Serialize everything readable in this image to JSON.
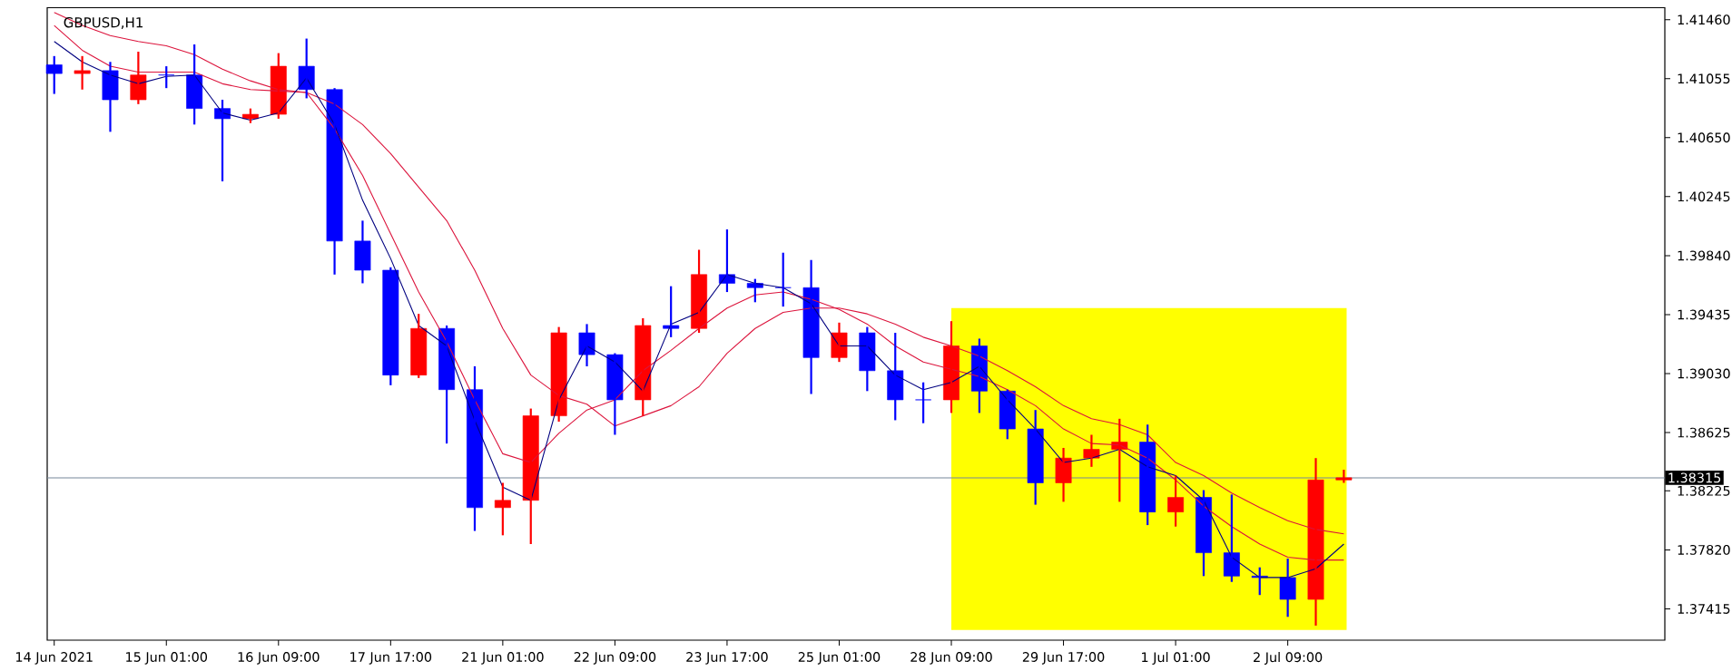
{
  "chart_data": {
    "type": "candlestick",
    "title": "GBPUSD,H1",
    "categories": [
      "14 Jun 2021",
      null,
      null,
      null,
      "15 Jun 01:00",
      null,
      null,
      null,
      "16 Jun 09:00",
      null,
      null,
      null,
      "17 Jun 17:00",
      null,
      null,
      null,
      "21 Jun 01:00",
      null,
      null,
      null,
      "22 Jun 09:00",
      null,
      null,
      null,
      "23 Jun 17:00",
      null,
      null,
      null,
      "25 Jun 01:00",
      null,
      null,
      null,
      "28 Jun 09:00",
      null,
      null,
      null,
      "29 Jun 17:00",
      null,
      null,
      null,
      "1 Jul 01:00",
      null,
      null,
      null,
      "2 Jul 09:00",
      null,
      null,
      null,
      null,
      null,
      null,
      null,
      null,
      null,
      null,
      null,
      null,
      null
    ],
    "ohlc": [
      [
        1.4115,
        1.4121,
        1.4095,
        1.4109
      ],
      [
        1.4109,
        1.4121,
        1.4098,
        1.4111
      ],
      [
        1.4111,
        1.4117,
        1.4069,
        1.4091
      ],
      [
        1.4091,
        1.4124,
        1.4088,
        1.4108
      ],
      [
        1.4108,
        1.4114,
        1.4099,
        1.4108
      ],
      [
        1.4108,
        1.4129,
        1.4074,
        1.4085
      ],
      [
        1.4085,
        1.4091,
        1.4035,
        1.4078
      ],
      [
        1.4078,
        1.4085,
        1.4075,
        1.4081
      ],
      [
        1.4081,
        1.4123,
        1.4078,
        1.4114
      ],
      [
        1.4114,
        1.4133,
        1.4092,
        1.4098
      ],
      [
        1.4098,
        1.4099,
        1.3971,
        1.3994
      ],
      [
        1.3994,
        1.4008,
        1.3965,
        1.3974
      ],
      [
        1.3974,
        1.3976,
        1.3895,
        1.3902
      ],
      [
        1.3902,
        1.3944,
        1.39,
        1.3934
      ],
      [
        1.3934,
        1.3936,
        1.3855,
        1.3892
      ],
      [
        1.3892,
        1.3908,
        1.3795,
        1.3811
      ],
      [
        1.3811,
        1.3828,
        1.3792,
        1.3816
      ],
      [
        1.3816,
        1.3879,
        1.3786,
        1.3874
      ],
      [
        1.3874,
        1.3935,
        1.387,
        1.3931
      ],
      [
        1.3931,
        1.3937,
        1.3908,
        1.3916
      ],
      [
        1.3916,
        1.3917,
        1.3861,
        1.3885
      ],
      [
        1.3885,
        1.3941,
        1.3874,
        1.3936
      ],
      [
        1.3936,
        1.3963,
        1.3928,
        1.3934
      ],
      [
        1.3934,
        1.3988,
        1.3931,
        1.3971
      ],
      [
        1.3971,
        1.4002,
        1.3959,
        1.3965
      ],
      [
        1.3965,
        1.3968,
        1.3952,
        1.3962
      ],
      [
        1.3962,
        1.3986,
        1.3949,
        1.3962
      ],
      [
        1.3962,
        1.3981,
        1.3889,
        1.3914
      ],
      [
        1.3914,
        1.3938,
        1.3911,
        1.3931
      ],
      [
        1.3931,
        1.3935,
        1.3891,
        1.3905
      ],
      [
        1.3905,
        1.3931,
        1.3871,
        1.3885
      ],
      [
        1.3885,
        1.3897,
        1.3869,
        1.3885
      ],
      [
        1.3885,
        1.3939,
        1.3876,
        1.3922
      ],
      [
        1.3922,
        1.3927,
        1.3876,
        1.3891
      ],
      [
        1.3891,
        1.3892,
        1.3858,
        1.3865
      ],
      [
        1.3865,
        1.3878,
        1.3813,
        1.3828
      ],
      [
        1.3828,
        1.3852,
        1.3815,
        1.3845
      ],
      [
        1.3845,
        1.3861,
        1.3839,
        1.3851
      ],
      [
        1.3851,
        1.3872,
        1.3815,
        1.3856
      ],
      [
        1.3856,
        1.3868,
        1.3799,
        1.3808
      ],
      [
        1.3808,
        1.3833,
        1.3798,
        1.3818
      ],
      [
        1.3818,
        1.3823,
        1.3764,
        1.378
      ],
      [
        1.378,
        1.382,
        1.376,
        1.3764
      ],
      [
        1.3764,
        1.377,
        1.3751,
        1.3763
      ],
      [
        1.3763,
        1.3776,
        1.3736,
        1.3748
      ],
      [
        1.3748,
        1.3845,
        1.373,
        1.383
      ],
      [
        1.383,
        1.3837,
        1.3828,
        1.38315
      ],
      null,
      null,
      null,
      null,
      null,
      null,
      null,
      null,
      null,
      null,
      null
    ],
    "colors": [
      "#0000ff",
      "#ff0000",
      "#0000ff",
      "#ff0000",
      "#0000ff",
      "#0000ff",
      "#0000ff",
      "#ff0000",
      "#ff0000",
      "#0000ff",
      "#0000ff",
      "#0000ff",
      "#0000ff",
      "#ff0000",
      "#0000ff",
      "#0000ff",
      "#ff0000",
      "#ff0000",
      "#ff0000",
      "#0000ff",
      "#0000ff",
      "#ff0000",
      "#0000ff",
      "#ff0000",
      "#0000ff",
      "#0000ff",
      "#0000ff",
      "#0000ff",
      "#ff0000",
      "#0000ff",
      "#0000ff",
      "#0000ff",
      "#ff0000",
      "#0000ff",
      "#0000ff",
      "#0000ff",
      "#ff0000",
      "#ff0000",
      "#ff0000",
      "#0000ff",
      "#ff0000",
      "#0000ff",
      "#0000ff",
      "#0000ff",
      "#0000ff",
      "#ff0000",
      "#ff0000",
      null,
      null,
      null,
      null,
      null,
      null,
      null,
      null,
      null,
      null,
      null
    ],
    "series": [
      {
        "type": "line",
        "color": "#dc143c",
        "values": [
          1.4151,
          1.4142,
          1.4135,
          1.4131,
          1.4128,
          1.4122,
          1.4112,
          1.4104,
          1.4098,
          1.4096,
          1.4088,
          1.4074,
          1.4054,
          1.4031,
          1.4008,
          1.3974,
          1.3934,
          1.3902,
          1.3888,
          1.3882,
          1.3867,
          1.3874,
          1.3881,
          1.3894,
          1.3917,
          1.3934,
          1.3945,
          1.3948,
          1.3948,
          1.3944,
          1.3937,
          1.3928,
          1.3922,
          1.3915,
          1.3905,
          1.3894,
          1.3881,
          1.3872,
          1.3868,
          1.3861,
          1.3842,
          1.3833,
          1.3821,
          1.3811,
          1.3802,
          1.3796,
          1.3793,
          null,
          null,
          null,
          null,
          null,
          null,
          null,
          null,
          null,
          null,
          null
        ]
      },
      {
        "type": "line",
        "color": "#dc143c",
        "values": [
          1.4142,
          1.4125,
          1.4114,
          1.411,
          1.411,
          1.411,
          1.4102,
          1.4098,
          1.4097,
          1.4096,
          1.4071,
          1.4039,
          1.3999,
          1.3959,
          1.3925,
          1.3885,
          1.3848,
          1.3842,
          1.3862,
          1.3878,
          1.3885,
          1.3905,
          1.3919,
          1.3934,
          1.3948,
          1.3957,
          1.3959,
          1.3954,
          1.3947,
          1.3937,
          1.3922,
          1.3911,
          1.3906,
          1.3901,
          1.3892,
          1.3881,
          1.3865,
          1.3855,
          1.3854,
          1.3845,
          1.383,
          1.3812,
          1.3798,
          1.3786,
          1.3777,
          1.3775,
          1.3775,
          null,
          null,
          null,
          null,
          null,
          null,
          null,
          null,
          null,
          null,
          null
        ]
      },
      {
        "type": "line",
        "color": "#000080",
        "values": [
          1.4131,
          1.4117,
          1.4108,
          1.4102,
          1.4107,
          1.4108,
          1.4082,
          1.4077,
          1.4082,
          1.4106,
          1.4074,
          1.4022,
          1.3982,
          1.3936,
          1.3922,
          1.3871,
          1.3825,
          1.3816,
          1.3885,
          1.3922,
          1.3911,
          1.3891,
          1.3937,
          1.3945,
          1.3971,
          1.3965,
          1.3962,
          1.3951,
          1.3922,
          1.3922,
          1.3902,
          1.3892,
          1.3897,
          1.3908,
          1.3885,
          1.3865,
          1.3842,
          1.3845,
          1.3851,
          1.3839,
          1.3833,
          1.3816,
          1.3777,
          1.3763,
          1.3763,
          1.3769,
          1.3786,
          null,
          null,
          null,
          null,
          null,
          null,
          null,
          null,
          null,
          null,
          null
        ]
      }
    ],
    "ylim": [
      1.372,
      1.41542
    ],
    "yticks": [
      {
        "value": 1.37415,
        "label": "1.37415"
      },
      {
        "value": 1.3782,
        "label": "1.37820"
      },
      {
        "value": 1.38225,
        "label": "1.38225"
      },
      {
        "value": 1.38625,
        "label": "1.38625"
      },
      {
        "value": 1.3903,
        "label": "1.39030"
      },
      {
        "value": 1.39435,
        "label": "1.39435"
      },
      {
        "value": 1.3984,
        "label": "1.39840"
      },
      {
        "value": 1.40245,
        "label": "1.40245"
      },
      {
        "value": 1.4065,
        "label": "1.40650"
      },
      {
        "value": 1.41055,
        "label": "1.41055"
      },
      {
        "value": 1.4146,
        "label": "1.41460"
      }
    ],
    "ref_lines": [
      {
        "axis": "y",
        "value": 1.38315,
        "label": "1.38315",
        "color": "#778899"
      }
    ],
    "grid": false
  }
}
